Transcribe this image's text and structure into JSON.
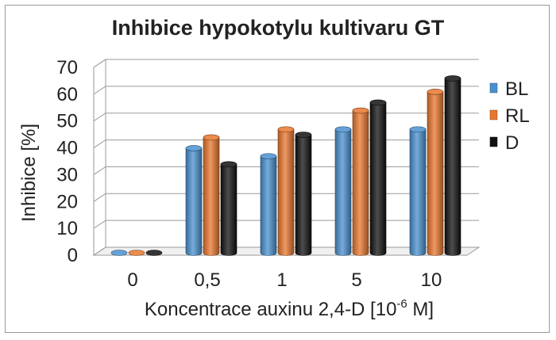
{
  "chart_data": {
    "type": "bar",
    "title": "Inhibice hypokotylu kultivaru GT",
    "xlabel_main": "Koncentrace auxinu 2,4-D [10",
    "xlabel_sup": "-6",
    "xlabel_end": " M]",
    "ylabel": "Inhibice [%]",
    "categories": [
      "0",
      "0,5",
      "1",
      "5",
      "10"
    ],
    "yticks": [
      "0",
      "10",
      "20",
      "30",
      "40",
      "50",
      "60",
      "70"
    ],
    "ylim": [
      0,
      70
    ],
    "grid": true,
    "legend_position": "right",
    "series": [
      {
        "name": "BL",
        "color": "#4a90d0",
        "values": [
          0,
          39,
          36,
          46,
          46
        ]
      },
      {
        "name": "RL",
        "color": "#e8772e",
        "values": [
          0,
          43,
          46,
          53,
          60
        ]
      },
      {
        "name": "D",
        "color": "#111111",
        "values": [
          0,
          33,
          44,
          56,
          65
        ]
      }
    ]
  }
}
